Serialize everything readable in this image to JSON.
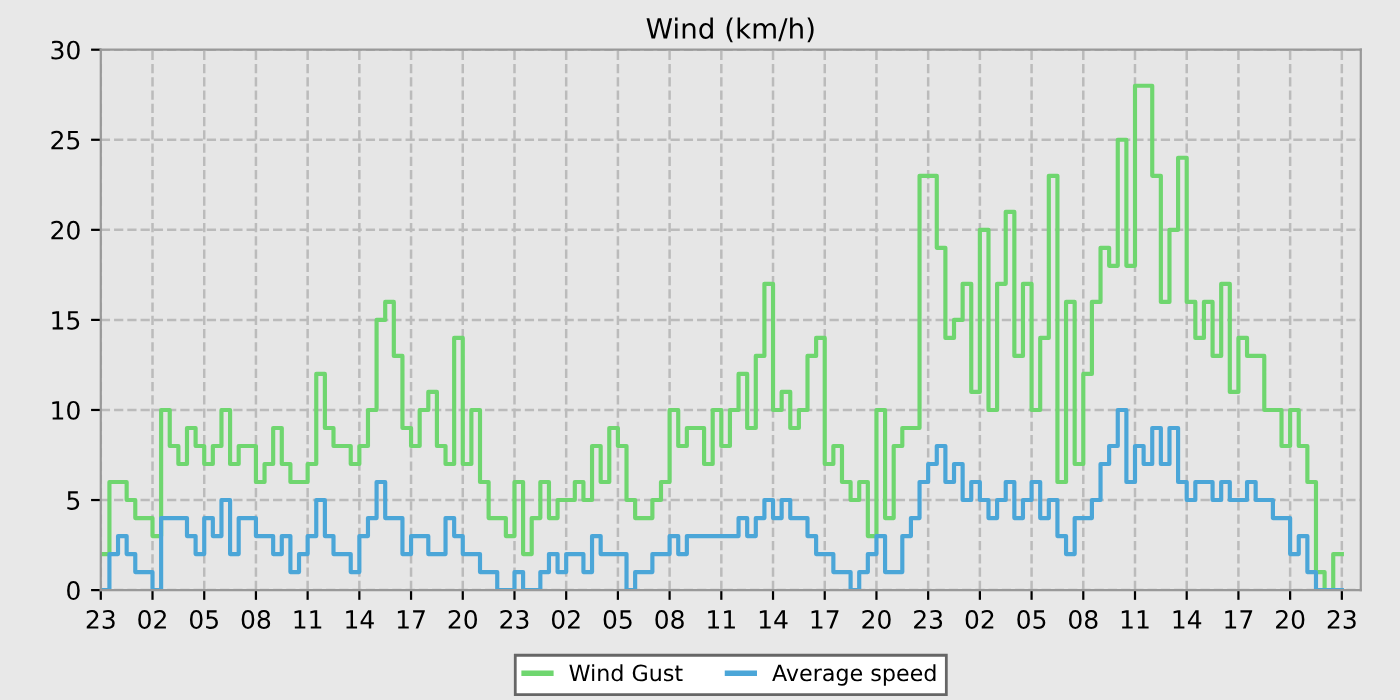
{
  "chart_data": {
    "type": "step",
    "title": "Wind (km/h)",
    "legend": "bottom",
    "grid": true,
    "line_style": "solid",
    "marker": "none",
    "ylim": [
      0,
      30
    ],
    "yticks": [
      0,
      5,
      10,
      15,
      20,
      25,
      30
    ],
    "categories": [
      "23",
      null,
      null,
      null,
      null,
      null,
      "02",
      null,
      null,
      null,
      null,
      null,
      "05",
      null,
      null,
      null,
      null,
      null,
      "08",
      null,
      null,
      null,
      null,
      null,
      "11",
      null,
      null,
      null,
      null,
      null,
      "14",
      null,
      null,
      null,
      null,
      null,
      "17",
      null,
      null,
      null,
      null,
      null,
      "20",
      null,
      null,
      null,
      null,
      null,
      "23",
      null,
      null,
      null,
      null,
      null,
      "02",
      null,
      null,
      null,
      null,
      null,
      "05",
      null,
      null,
      null,
      null,
      null,
      "08",
      null,
      null,
      null,
      null,
      null,
      "11",
      null,
      null,
      null,
      null,
      null,
      "14",
      null,
      null,
      null,
      null,
      null,
      "17",
      null,
      null,
      null,
      null,
      null,
      "20",
      null,
      null,
      null,
      null,
      null,
      "23",
      null,
      null,
      null,
      null,
      null,
      "02",
      null,
      null,
      null,
      null,
      null,
      "05",
      null,
      null,
      null,
      null,
      null,
      "08",
      null,
      null,
      null,
      null,
      null,
      "11",
      null,
      null,
      null,
      null,
      null,
      "14",
      null,
      null,
      null,
      null,
      null,
      "17",
      null,
      null,
      null,
      null,
      null,
      "20",
      null,
      null,
      null,
      null,
      null,
      "23"
    ],
    "series": [
      {
        "name": "Wind Gust",
        "color": "#6fd66f",
        "values": [
          2,
          6,
          6,
          5,
          4,
          4,
          3,
          10,
          8,
          7,
          9,
          8,
          7,
          8,
          10,
          7,
          8,
          8,
          6,
          7,
          9,
          7,
          6,
          6,
          7,
          12,
          9,
          8,
          8,
          7,
          8,
          10,
          15,
          16,
          13,
          9,
          8,
          10,
          11,
          8,
          7,
          14,
          7,
          10,
          6,
          4,
          4,
          3,
          6,
          2,
          4,
          6,
          4,
          5,
          5,
          6,
          5,
          8,
          6,
          9,
          8,
          5,
          4,
          4,
          5,
          6,
          10,
          8,
          9,
          9,
          7,
          10,
          8,
          10,
          12,
          9,
          13,
          17,
          10,
          11,
          9,
          10,
          13,
          14,
          7,
          8,
          6,
          5,
          6,
          3,
          10,
          4,
          8,
          9,
          9,
          23,
          23,
          19,
          14,
          15,
          17,
          11,
          20,
          10,
          17,
          21,
          13,
          17,
          10,
          14,
          23,
          6,
          16,
          7,
          12,
          16,
          19,
          18,
          25,
          18,
          28,
          28,
          23,
          16,
          20,
          24,
          16,
          14,
          16,
          13,
          17,
          11,
          14,
          13,
          13,
          10,
          10,
          8,
          10,
          8,
          6,
          1,
          0,
          2,
          2
        ]
      },
      {
        "name": "Average speed",
        "color": "#4ba6d8",
        "values": [
          0,
          2,
          3,
          2,
          1,
          1,
          0,
          4,
          4,
          4,
          3,
          2,
          4,
          3,
          5,
          2,
          4,
          4,
          3,
          3,
          2,
          3,
          1,
          2,
          3,
          5,
          3,
          2,
          2,
          1,
          3,
          4,
          6,
          4,
          4,
          2,
          3,
          3,
          2,
          2,
          4,
          3,
          2,
          2,
          1,
          1,
          0,
          0,
          1,
          0,
          0,
          1,
          2,
          1,
          2,
          2,
          1,
          3,
          2,
          2,
          2,
          0,
          1,
          1,
          2,
          2,
          3,
          2,
          3,
          3,
          3,
          3,
          3,
          3,
          4,
          3,
          4,
          5,
          4,
          5,
          4,
          4,
          3,
          2,
          2,
          1,
          1,
          0,
          1,
          2,
          3,
          1,
          1,
          3,
          4,
          6,
          7,
          8,
          6,
          7,
          5,
          6,
          5,
          4,
          5,
          6,
          4,
          5,
          6,
          4,
          5,
          3,
          2,
          4,
          4,
          5,
          7,
          8,
          10,
          6,
          8,
          7,
          9,
          7,
          9,
          6,
          5,
          6,
          6,
          5,
          6,
          5,
          5,
          6,
          5,
          5,
          4,
          4,
          2,
          3,
          1,
          0,
          0,
          0,
          0
        ]
      }
    ]
  }
}
